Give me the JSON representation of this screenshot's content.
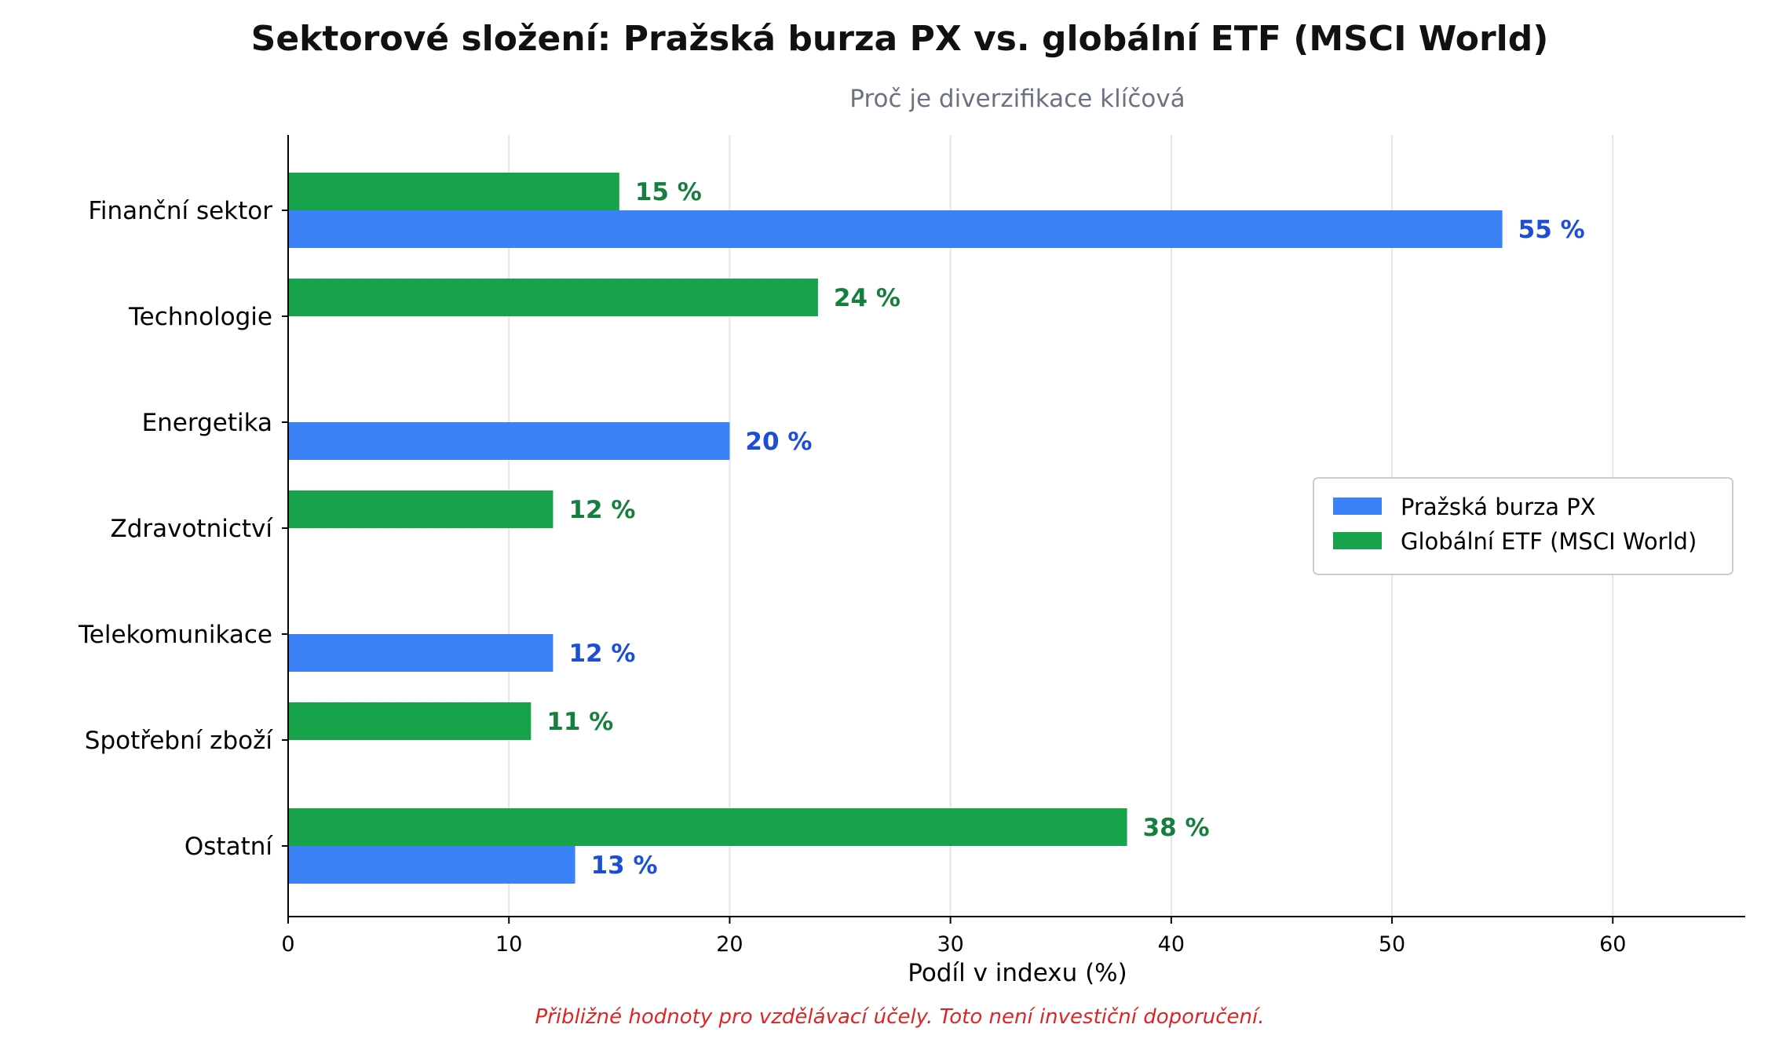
{
  "chart_data": {
    "type": "bar",
    "orientation": "horizontal",
    "title": "Sektorové složení: Pražská burza PX vs. globální ETF (MSCI World)",
    "subtitle": "Proč je diverzifikace klíčová",
    "xlabel": "Podíl v indexu (%)",
    "ylabel": "",
    "footnote": "Přibližné hodnoty pro vzdělávací účely. Toto není investiční doporučení.",
    "xlim": [
      0,
      66
    ],
    "xticks": [
      0,
      10,
      20,
      30,
      40,
      50,
      60
    ],
    "grid": "vertical",
    "legend_position": "right",
    "value_suffix": " %",
    "categories": [
      "Finanční sektor",
      "Technologie",
      "Energetika",
      "Zdravotnictví",
      "Telekomunikace",
      "Spotřební zboží",
      "Ostatní"
    ],
    "series": [
      {
        "name": "Pražská burza PX",
        "color": "#3b82f6",
        "label_color": "#1d4ed8",
        "values": [
          55,
          0,
          20,
          0,
          12,
          0,
          13
        ]
      },
      {
        "name": "Globální ETF (MSCI World)",
        "color": "#16a34a",
        "label_color": "#15803d",
        "values": [
          15,
          24,
          0,
          12,
          0,
          11,
          38
        ]
      }
    ],
    "colors": {
      "title": "#111111",
      "subtitle": "#6b7280",
      "footnote": "#dc2626",
      "axis": "#000000",
      "grid": "#e5e5e5"
    }
  }
}
